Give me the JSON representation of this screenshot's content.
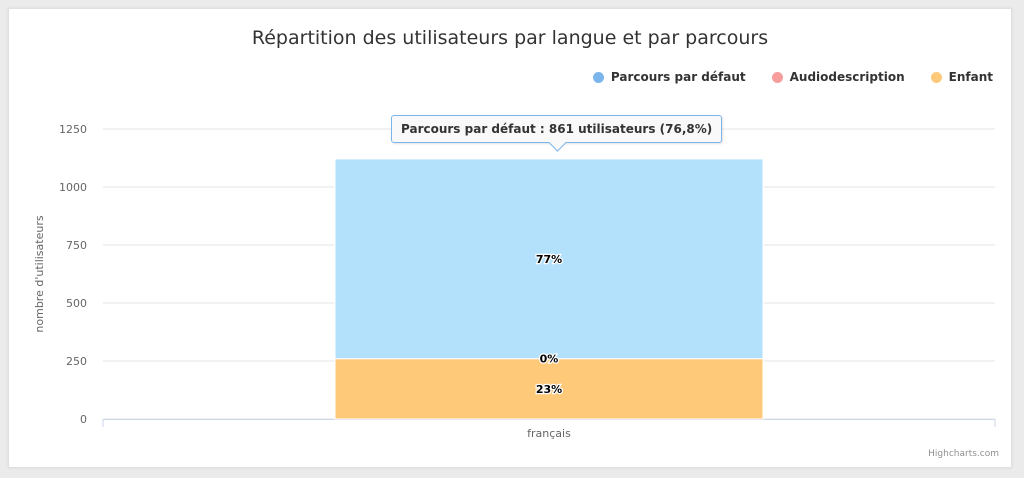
{
  "chart_data": {
    "type": "bar",
    "stacked": true,
    "title": "Répartition des utilisateurs par langue et par parcours",
    "ylabel": "nombre d'utilisateurs",
    "xlabel": "",
    "categories": [
      "français"
    ],
    "ylim": [
      0,
      1250
    ],
    "yticks": [
      "0",
      "250",
      "500",
      "750",
      "1000",
      "1250"
    ],
    "grid": true,
    "legend_position": "top-right",
    "series": [
      {
        "name": "Parcours par défaut",
        "color": "#7cb5ec",
        "fill": "#b3e0fb",
        "values": [
          861
        ],
        "label": "77%"
      },
      {
        "name": "Audiodescription",
        "color": "#f7a0b1",
        "fill": "#f7a0b1",
        "values": [
          0
        ],
        "label": "0%"
      },
      {
        "name": "Enfant",
        "color": "#ffc97a",
        "fill": "#ffc97a",
        "values": [
          260
        ],
        "label": "23%"
      }
    ],
    "tooltip": "Parcours par défaut : 861 utilisateurs (76,8%)",
    "credits": "Highcharts.com"
  }
}
